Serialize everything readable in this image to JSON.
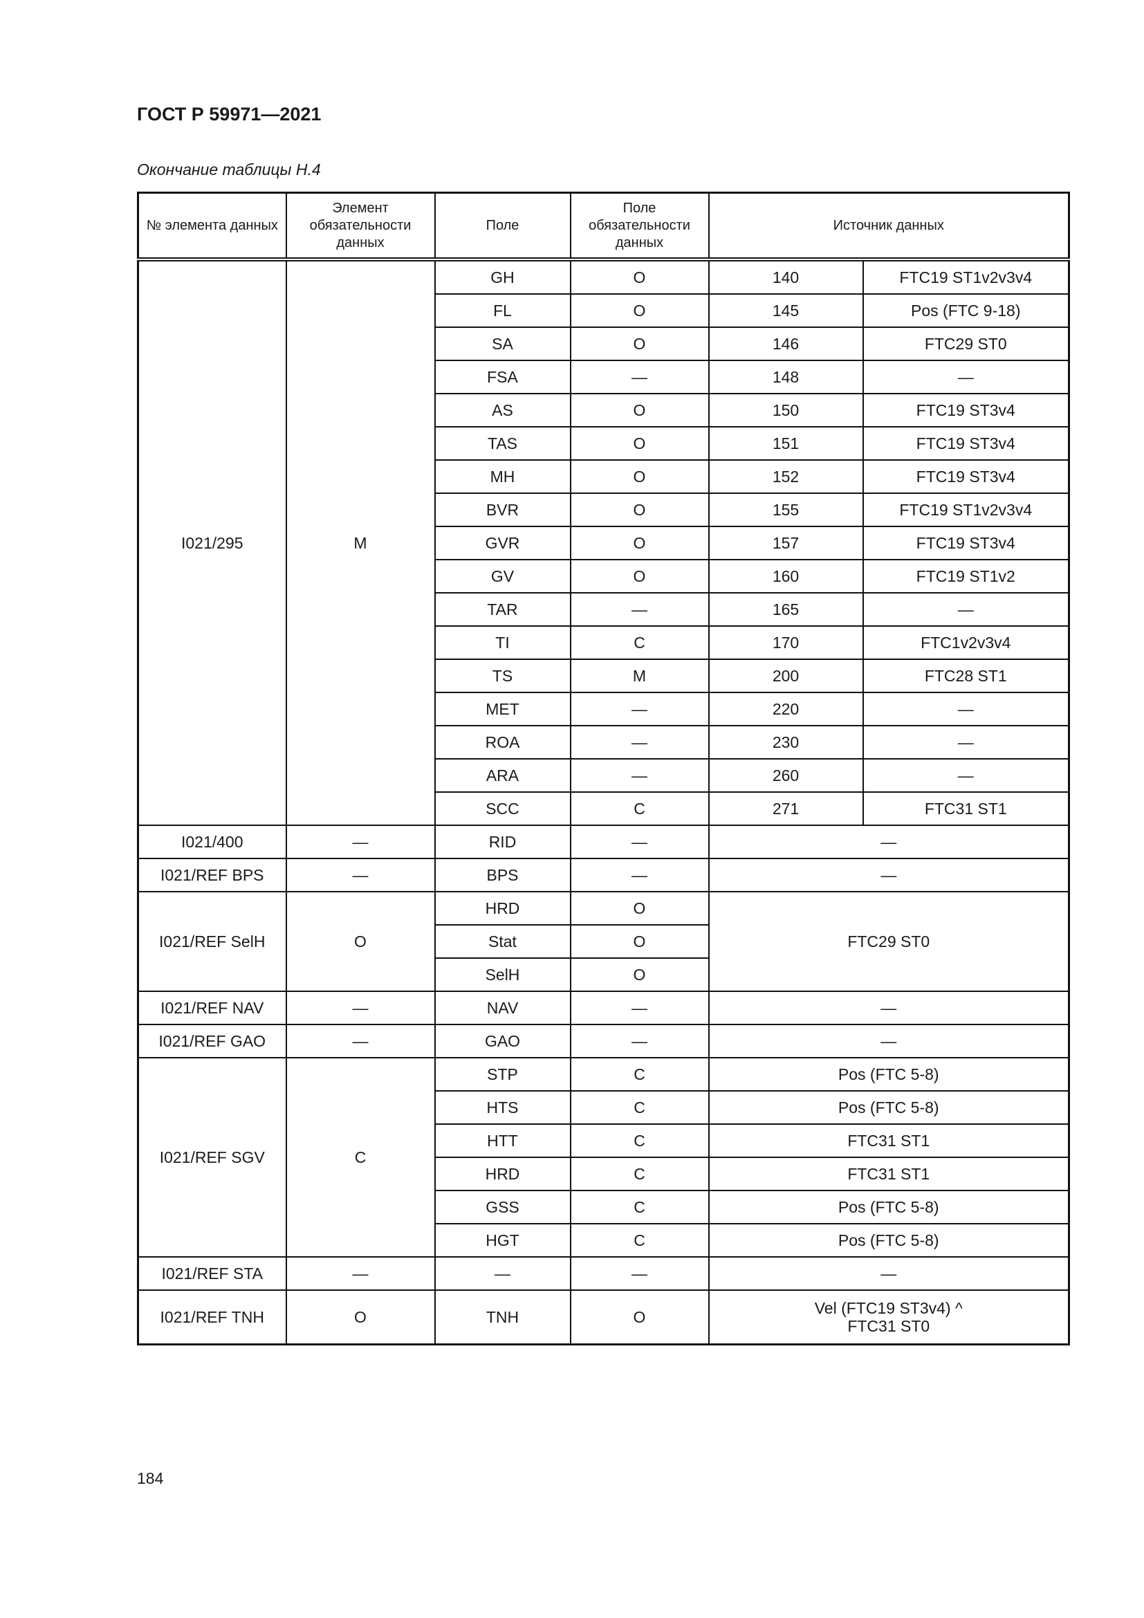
{
  "header": {
    "doc_title": "ГОСТ Р 59971—2021",
    "caption": "Окончание таблицы Н.4"
  },
  "table": {
    "columns": [
      "№ элемента данных",
      "Элемент обязательности данных",
      "Поле",
      "Поле обязательности данных",
      "Источник данных"
    ],
    "groups": [
      {
        "id": "I021/295",
        "mandatory": "M",
        "rows": [
          {
            "field": "GH",
            "field_mandatory": "O",
            "code": "140",
            "source": "FTC19 ST1v2v3v4"
          },
          {
            "field": "FL",
            "field_mandatory": "O",
            "code": "145",
            "source": "Pos (FTC 9-18)"
          },
          {
            "field": "SA",
            "field_mandatory": "O",
            "code": "146",
            "source": "FTC29 ST0"
          },
          {
            "field": "FSA",
            "field_mandatory": "—",
            "code": "148",
            "source": "—"
          },
          {
            "field": "AS",
            "field_mandatory": "O",
            "code": "150",
            "source": "FTC19 ST3v4"
          },
          {
            "field": "TAS",
            "field_mandatory": "O",
            "code": "151",
            "source": "FTC19 ST3v4"
          },
          {
            "field": "MH",
            "field_mandatory": "O",
            "code": "152",
            "source": "FTC19 ST3v4"
          },
          {
            "field": "BVR",
            "field_mandatory": "O",
            "code": "155",
            "source": "FTC19 ST1v2v3v4"
          },
          {
            "field": "GVR",
            "field_mandatory": "O",
            "code": "157",
            "source": "FTC19 ST3v4"
          },
          {
            "field": "GV",
            "field_mandatory": "O",
            "code": "160",
            "source": "FTC19 ST1v2"
          },
          {
            "field": "TAR",
            "field_mandatory": "—",
            "code": "165",
            "source": "—"
          },
          {
            "field": "TI",
            "field_mandatory": "C",
            "code": "170",
            "source": "FTC1v2v3v4"
          },
          {
            "field": "TS",
            "field_mandatory": "M",
            "code": "200",
            "source": "FTC28 ST1"
          },
          {
            "field": "MET",
            "field_mandatory": "—",
            "code": "220",
            "source": "—"
          },
          {
            "field": "ROA",
            "field_mandatory": "—",
            "code": "230",
            "source": "—"
          },
          {
            "field": "ARA",
            "field_mandatory": "—",
            "code": "260",
            "source": "—"
          },
          {
            "field": "SCC",
            "field_mandatory": "C",
            "code": "271",
            "source": "FTC31 ST1"
          }
        ]
      },
      {
        "id": "I021/400",
        "mandatory": "—",
        "rows": [
          {
            "field": "RID",
            "field_mandatory": "—",
            "source": "—"
          }
        ]
      },
      {
        "id": "I021/REF BPS",
        "mandatory": "—",
        "rows": [
          {
            "field": "BPS",
            "field_mandatory": "—",
            "source": "—"
          }
        ]
      },
      {
        "id": "I021/REF SelH",
        "mandatory": "O",
        "source": "FTC29 ST0",
        "rows": [
          {
            "field": "HRD",
            "field_mandatory": "O"
          },
          {
            "field": "Stat",
            "field_mandatory": "O"
          },
          {
            "field": "SelH",
            "field_mandatory": "O"
          }
        ]
      },
      {
        "id": "I021/REF NAV",
        "mandatory": "—",
        "rows": [
          {
            "field": "NAV",
            "field_mandatory": "—",
            "source": "—"
          }
        ]
      },
      {
        "id": "I021/REF GAO",
        "mandatory": "—",
        "rows": [
          {
            "field": "GAO",
            "field_mandatory": "—",
            "source": "—"
          }
        ]
      },
      {
        "id": "I021/REF SGV",
        "mandatory": "C",
        "rows": [
          {
            "field": "STP",
            "field_mandatory": "C",
            "source": "Pos (FTC 5-8)"
          },
          {
            "field": "HTS",
            "field_mandatory": "C",
            "source": "Pos (FTC 5-8)"
          },
          {
            "field": "HTT",
            "field_mandatory": "C",
            "source": "FTC31 ST1"
          },
          {
            "field": "HRD",
            "field_mandatory": "C",
            "source": "FTC31 ST1"
          },
          {
            "field": "GSS",
            "field_mandatory": "C",
            "source": "Pos (FTC 5-8)"
          },
          {
            "field": "HGT",
            "field_mandatory": "C",
            "source": "Pos (FTC 5-8)"
          }
        ]
      },
      {
        "id": "I021/REF STA",
        "mandatory": "—",
        "rows": [
          {
            "field": "—",
            "field_mandatory": "—",
            "source": "—"
          }
        ]
      },
      {
        "id": "I021/REF TNH",
        "mandatory": "O",
        "rows": [
          {
            "field": "TNH",
            "field_mandatory": "O",
            "source_lines": [
              "Vel (FTC19 ST3v4) ^",
              "FTC31 ST0"
            ]
          }
        ]
      }
    ]
  },
  "footer": {
    "page_number": "184"
  }
}
